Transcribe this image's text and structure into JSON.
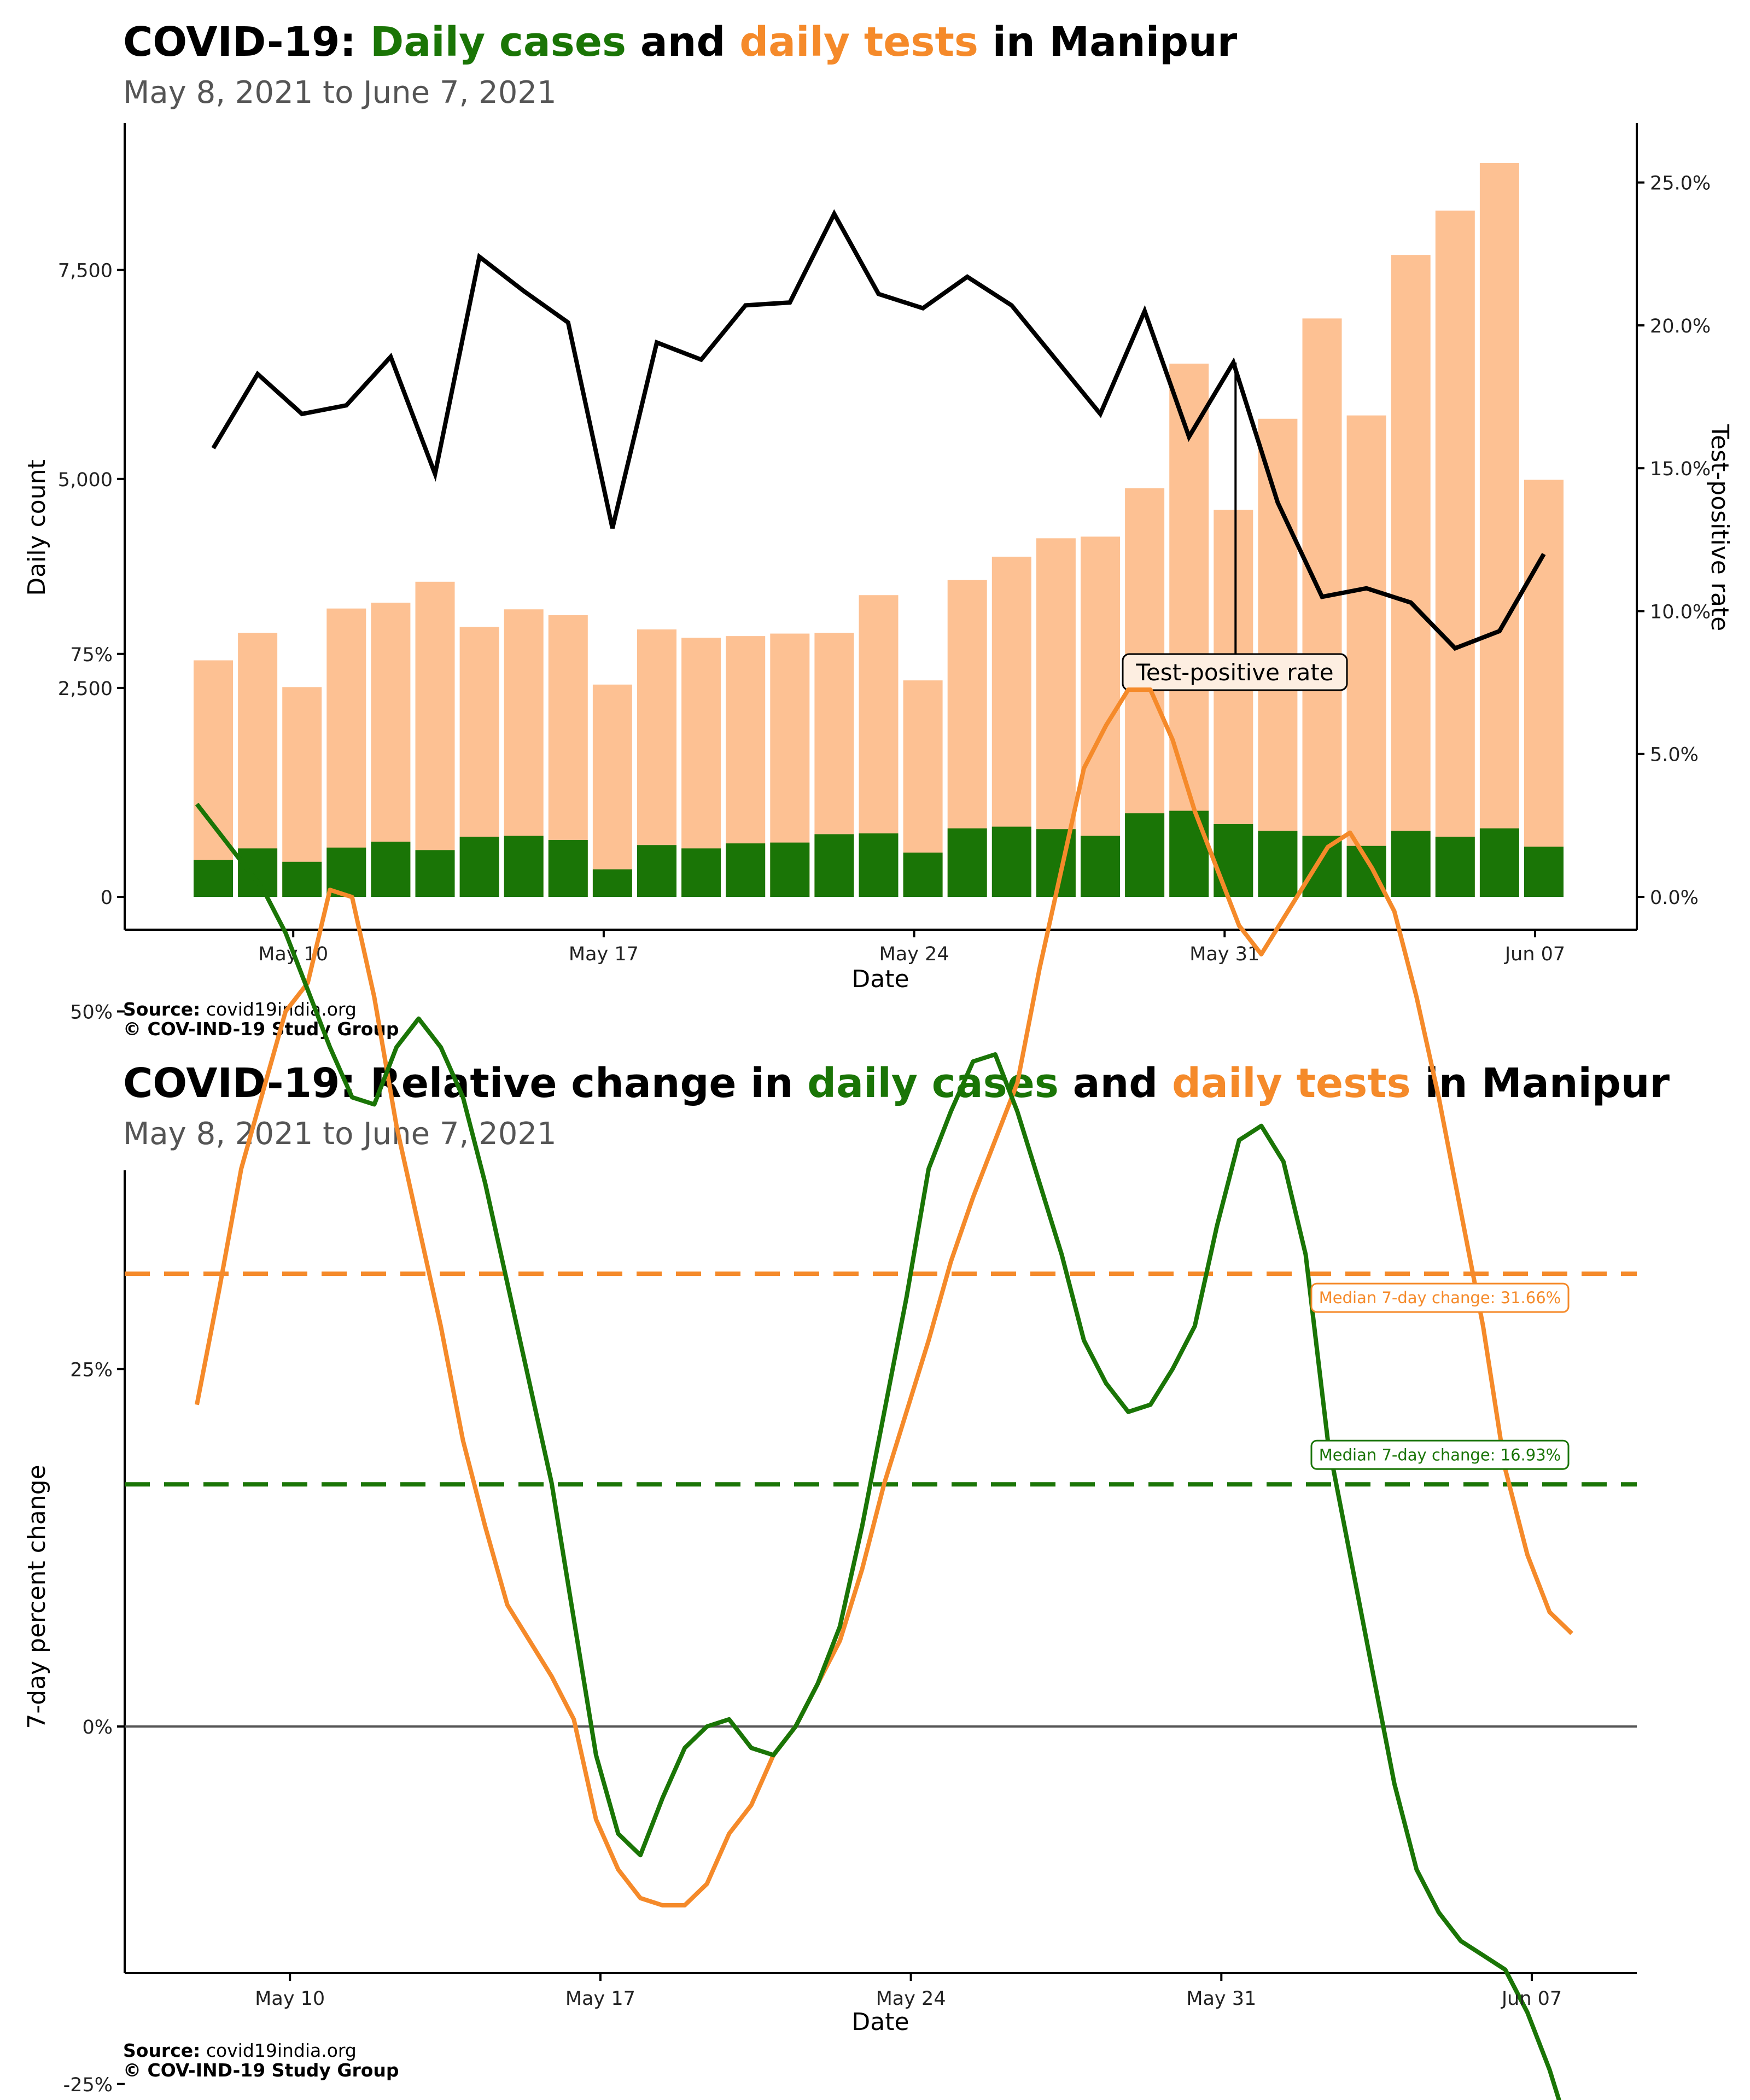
{
  "colors": {
    "cases": "#1a7506",
    "tests": "#fdc193",
    "tests_line": "#f58a2a",
    "tpr": "#000000",
    "subtitle": "#555555",
    "zero_line": "#555555"
  },
  "chart1": {
    "title_prefix": "COVID-19: ",
    "title_cases": "Daily cases",
    "title_and": " and ",
    "title_tests": "daily tests",
    "title_suffix": " in Manipur",
    "subtitle": "May  8, 2021 to June  7, 2021",
    "source_label": "Source:",
    "source_text": " covid19india.org",
    "copyright": "© COV-IND-19 Study Group"
  },
  "chart2": {
    "title_prefix": "COVID-19: Relative change in ",
    "title_cases": "daily cases",
    "title_and": " and ",
    "title_tests": "daily tests",
    "title_suffix": " in Manipur",
    "subtitle": "May  8, 2021 to June  7, 2021",
    "source_label": "Source:",
    "source_text": " covid19india.org",
    "copyright": "© COV-IND-19 Study Group"
  },
  "chart_data": [
    {
      "type": "bar",
      "title": "COVID-19: Daily cases and daily tests in Manipur",
      "subtitle": "May  8, 2021 to June  7, 2021",
      "xlabel": "Date",
      "ylabel": "Daily count",
      "y2label": "Test-positive rate",
      "ylim": [
        0,
        8800
      ],
      "y2lim": [
        0,
        0.2574
      ],
      "yticks": [
        0,
        2500,
        5000,
        7500
      ],
      "ytick_labels": [
        "0",
        "2,500",
        "5,000",
        "7,500"
      ],
      "y2ticks": [
        0,
        0.05,
        0.1,
        0.15,
        0.2,
        0.25
      ],
      "y2tick_labels": [
        "0.0%",
        "5.0%",
        "10.0%",
        "15.0%",
        "20.0%",
        "25.0%"
      ],
      "xticks": [
        2,
        9,
        16,
        23,
        30
      ],
      "xtick_labels": [
        "May 10",
        "May 17",
        "May 24",
        "May 31",
        "Jun 07"
      ],
      "categories": [
        "May 08",
        "May 09",
        "May 10",
        "May 11",
        "May 12",
        "May 13",
        "May 14",
        "May 15",
        "May 16",
        "May 17",
        "May 18",
        "May 19",
        "May 20",
        "May 21",
        "May 22",
        "May 23",
        "May 24",
        "May 25",
        "May 26",
        "May 27",
        "May 28",
        "May 29",
        "May 30",
        "May 31",
        "Jun 01",
        "Jun 02",
        "Jun 03",
        "Jun 04",
        "Jun 05",
        "Jun 06",
        "Jun 07"
      ],
      "series": [
        {
          "name": "Daily tests",
          "kind": "bar",
          "values": [
            2830,
            3160,
            2510,
            3450,
            3520,
            3770,
            3230,
            3440,
            3370,
            2540,
            3200,
            3100,
            3120,
            3150,
            3160,
            3610,
            2590,
            3790,
            4070,
            4290,
            4310,
            4890,
            6380,
            4630,
            5720,
            6920,
            5760,
            7680,
            8210,
            8780,
            4990
          ]
        },
        {
          "name": "Daily cases",
          "kind": "bar",
          "values": [
            440,
            580,
            420,
            590,
            660,
            560,
            720,
            730,
            680,
            330,
            620,
            580,
            640,
            650,
            750,
            760,
            530,
            820,
            840,
            810,
            730,
            1000,
            1030,
            870,
            790,
            730,
            610,
            790,
            720,
            820,
            600
          ]
        },
        {
          "name": "Test-positive rate",
          "kind": "line",
          "axis": "y2",
          "values": [
            0.157,
            0.183,
            0.169,
            0.172,
            0.189,
            0.148,
            0.224,
            0.212,
            0.201,
            0.129,
            0.194,
            0.188,
            0.207,
            0.208,
            0.239,
            0.211,
            0.206,
            0.217,
            0.207,
            0.188,
            0.169,
            0.205,
            0.161,
            0.187,
            0.138,
            0.105,
            0.108,
            0.103,
            0.087,
            0.093,
            0.12
          ]
        }
      ],
      "annotation": {
        "label": "Test-positive rate",
        "at_index": 23
      }
    },
    {
      "type": "line",
      "title": "COVID-19: Relative change in daily cases and daily tests in Manipur",
      "subtitle": "May  8, 2021 to June  7, 2021",
      "xlabel": "Date",
      "ylabel": "7-day percent change",
      "ylim": [
        -0.35,
        0.78
      ],
      "yticks": [
        -0.25,
        0,
        0.25,
        0.5,
        0.75
      ],
      "ytick_labels": [
        "-25%",
        "0%",
        "25%",
        "50%",
        "75%"
      ],
      "xticks": [
        2,
        9,
        16,
        23,
        30
      ],
      "xtick_labels": [
        "May 10",
        "May 17",
        "May 24",
        "May 31",
        "Jun 07"
      ],
      "x": [
        0,
        0.5,
        1,
        1.5,
        2,
        2.5,
        3,
        3.5,
        4,
        4.5,
        5,
        5.5,
        6,
        6.5,
        7,
        7.5,
        8,
        8.5,
        9,
        9.5,
        10,
        10.5,
        11,
        11.5,
        12,
        12.5,
        13,
        13.5,
        14,
        14.5,
        15,
        15.5,
        16,
        16.5,
        17,
        17.5,
        18,
        18.5,
        19,
        19.5,
        20,
        20.5,
        21,
        21.5,
        22,
        22.5,
        23,
        23.5,
        24,
        24.5,
        25,
        25.5,
        26,
        26.5,
        27,
        27.5,
        28,
        28.5,
        29,
        29.5,
        30,
        30.5,
        31
      ],
      "series": [
        {
          "name": "Daily tests",
          "color": "#f58a2a",
          "values": [
            0.225,
            0.305,
            0.39,
            0.445,
            0.5,
            0.52,
            0.585,
            0.58,
            0.51,
            0.42,
            0.35,
            0.28,
            0.2,
            0.14,
            0.085,
            0.06,
            0.035,
            0.005,
            -0.065,
            -0.1,
            -0.12,
            -0.125,
            -0.125,
            -0.11,
            -0.075,
            -0.055,
            -0.02,
            0.0,
            0.03,
            0.06,
            0.11,
            0.17,
            0.22,
            0.27,
            0.325,
            0.37,
            0.41,
            0.45,
            0.53,
            0.6,
            0.67,
            0.7,
            0.725,
            0.725,
            0.69,
            0.64,
            0.6,
            0.56,
            0.54,
            0.565,
            0.59,
            0.615,
            0.625,
            0.6,
            0.57,
            0.51,
            0.44,
            0.36,
            0.28,
            0.18,
            0.12,
            0.08,
            0.065
          ]
        },
        {
          "name": "Daily cases",
          "color": "#1a7506",
          "values": [
            0.645,
            0.625,
            0.605,
            0.585,
            0.555,
            0.515,
            0.475,
            0.44,
            0.435,
            0.475,
            0.495,
            0.475,
            0.44,
            0.38,
            0.31,
            0.24,
            0.17,
            0.075,
            -0.02,
            -0.075,
            -0.09,
            -0.05,
            -0.015,
            0.0,
            0.005,
            -0.015,
            -0.02,
            0.0,
            0.03,
            0.07,
            0.14,
            0.22,
            0.3,
            0.39,
            0.43,
            0.465,
            0.47,
            0.43,
            0.38,
            0.33,
            0.27,
            0.24,
            0.22,
            0.225,
            0.25,
            0.28,
            0.35,
            0.41,
            0.42,
            0.395,
            0.33,
            0.2,
            0.12,
            0.04,
            -0.04,
            -0.1,
            -0.13,
            -0.15,
            -0.16,
            -0.17,
            -0.2,
            -0.24,
            -0.29
          ]
        }
      ],
      "median_lines": [
        {
          "label": "Median 7-day change: 31.66%",
          "value": 0.3166,
          "color": "#f58a2a"
        },
        {
          "label": "Median 7-day change: 16.93%",
          "value": 0.1693,
          "color": "#1a7506"
        }
      ]
    }
  ]
}
